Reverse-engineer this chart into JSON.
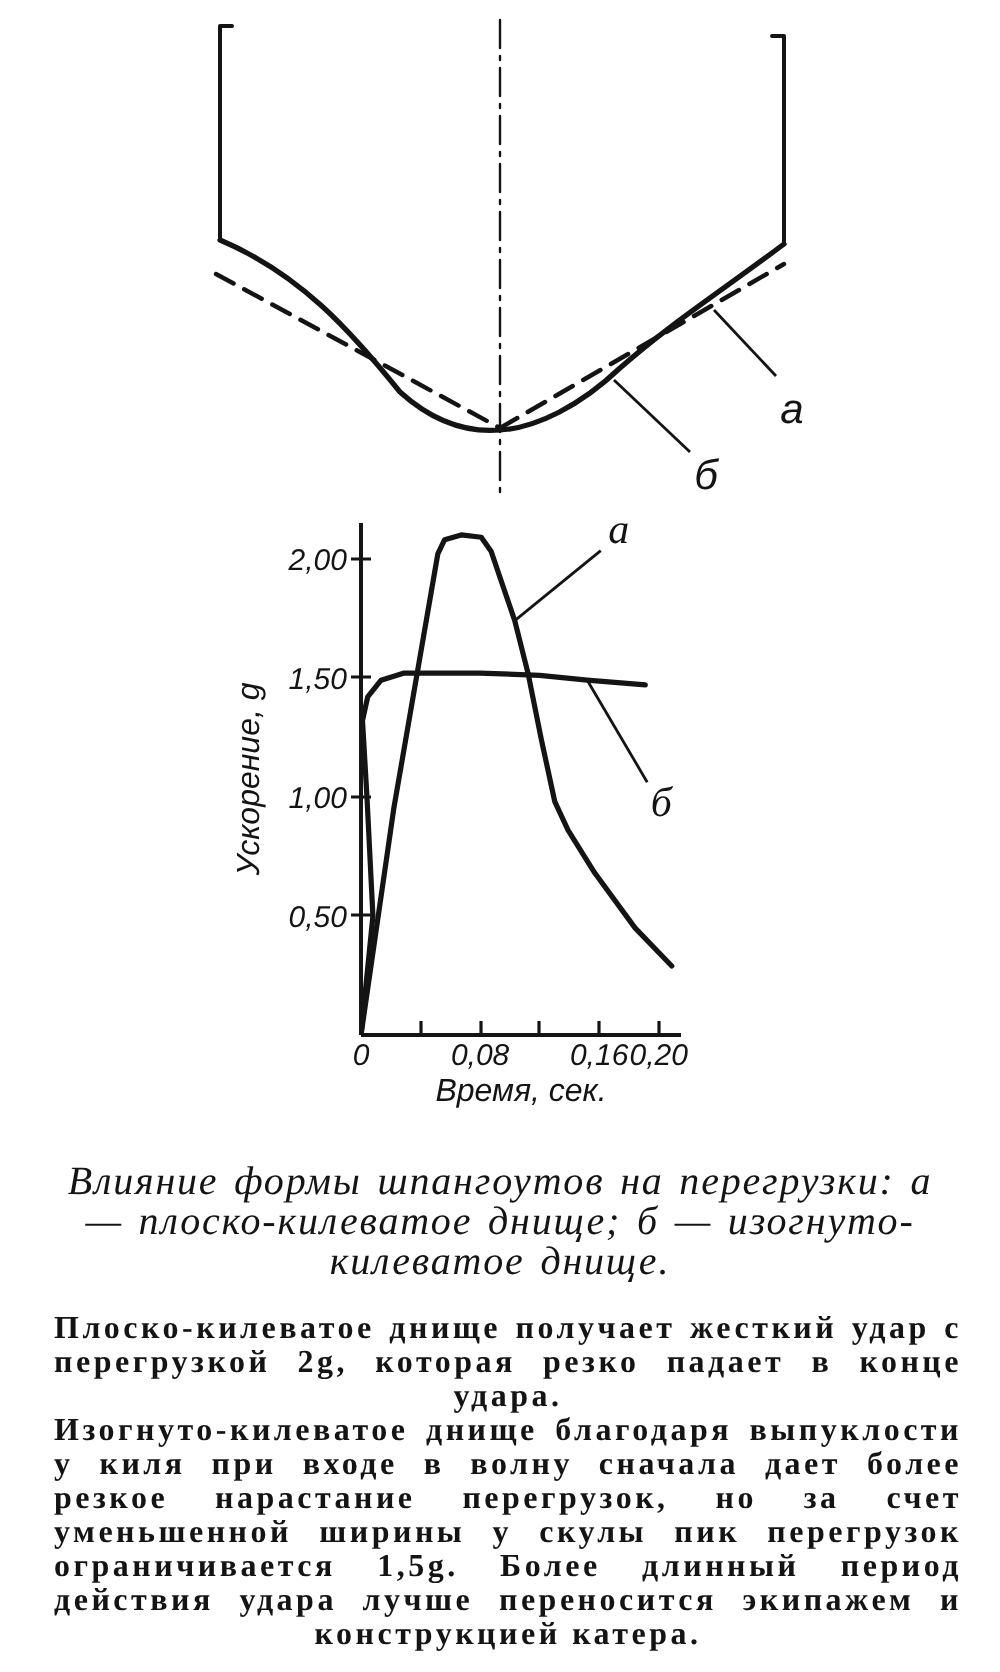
{
  "chart_data": [
    {
      "type": "other",
      "annotations": [
        "а",
        "б"
      ]
    },
    {
      "type": "line",
      "title": "Влияние формы шпангоутов на перегрузки: а — плоско-килеватое днище; б — изогнуто-килеватое днище.",
      "xlabel": "Время, сек.",
      "ylabel": "Ускорение, g",
      "xlim": [
        0,
        0.215
      ],
      "ylim": [
        0,
        2.15
      ],
      "xticks": [
        {
          "value": 0,
          "label": "0"
        },
        {
          "value": 0.04,
          "label": null
        },
        {
          "value": 0.08,
          "label": "0,08"
        },
        {
          "value": 0.12,
          "label": null
        },
        {
          "value": 0.16,
          "label": "0,16"
        },
        {
          "value": 0.2,
          "label": "0,20"
        }
      ],
      "yticks": [
        {
          "value": 0.5,
          "label": "0,50"
        },
        {
          "value": 1.0,
          "label": "1,00"
        },
        {
          "value": 1.5,
          "label": "1,50"
        },
        {
          "value": 2.0,
          "label": "2,00"
        }
      ],
      "grid": false,
      "line_style": "solid",
      "series": [
        {
          "name": "а",
          "color": "#141414",
          "x": [
            0,
            0.022,
            0.0516,
            0.0562,
            0.0673,
            0.0808,
            0.0875,
            0.1033,
            0.1122,
            0.1212,
            0.1302,
            0.1391,
            0.1571,
            0.1841,
            0.2088
          ],
          "values": [
            0,
            0.95,
            2.02,
            2.08,
            2.1,
            2.09,
            2.03,
            1.74,
            1.52,
            1.24,
            0.98,
            0.86,
            0.68,
            0.45,
            0.29
          ]
        },
        {
          "name": "б",
          "color": "#141414",
          "x": [
            0,
            0.008,
            0.004,
            0.001,
            0.0045,
            0.0135,
            0.029,
            0.08,
            0.12,
            0.152,
            0.191
          ],
          "values": [
            0,
            0.5,
            1.0,
            1.32,
            1.42,
            1.49,
            1.52,
            1.52,
            1.51,
            1.49,
            1.47
          ]
        }
      ],
      "annotations": [
        "Плоско-килеватое днище получает жесткий удар с перегрузкой 2g, которая резко падает в конце удара.",
        "Изогнуто-килеватое днище благодаря выпуклости у киля при входе в волну сначала дает более резкое нарастание перегрузок, но за счет уменьшенной ширины у скулы пик перегрузок ограничивается 1,5g. Более длинный период действия удара лучше переносится экипажем и конструкцией катера."
      ]
    }
  ]
}
